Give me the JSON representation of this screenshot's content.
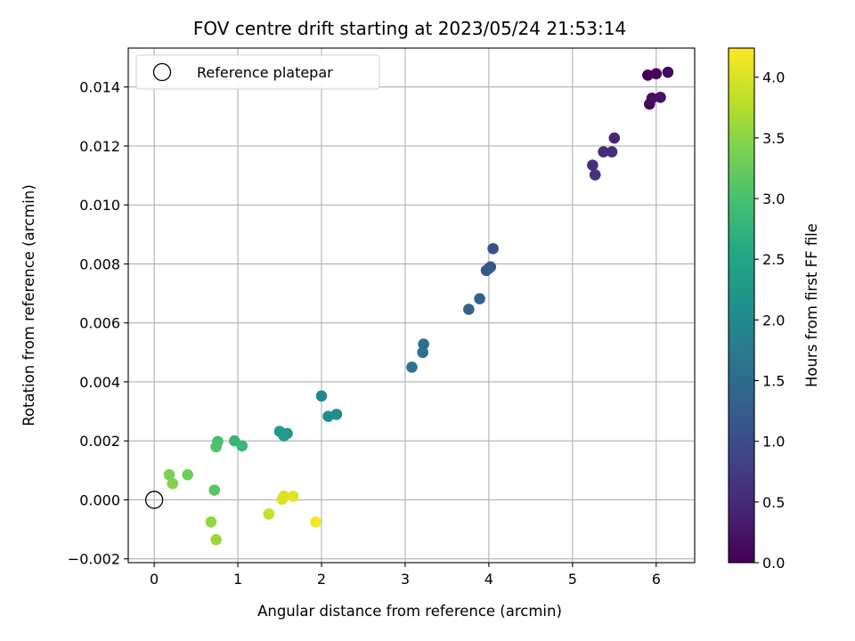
{
  "chart_data": {
    "type": "scatter",
    "title": "FOV centre drift starting at 2023/05/24 21:53:14",
    "xlabel": "Angular distance from reference (arcmin)",
    "ylabel": "Rotation from reference (arcmin)",
    "xlim": [
      -0.31,
      6.46
    ],
    "ylim": [
      -0.00213,
      0.01532
    ],
    "xticks": [
      0,
      1,
      2,
      3,
      4,
      5,
      6
    ],
    "xtick_labels": [
      "0",
      "1",
      "2",
      "3",
      "4",
      "5",
      "6"
    ],
    "yticks": [
      -0.002,
      0.0,
      0.002,
      0.004,
      0.006,
      0.008,
      0.01,
      0.012,
      0.014
    ],
    "ytick_labels": [
      "−0.002",
      "0.000",
      "0.002",
      "0.004",
      "0.006",
      "0.008",
      "0.010",
      "0.012",
      "0.014"
    ],
    "grid": true,
    "legend": {
      "position": "top-left",
      "entries": [
        {
          "label": "Reference platepar",
          "marker": "open-circle",
          "color": "#000000"
        }
      ]
    },
    "reference_point": {
      "x": 0.0,
      "y": 0.0
    },
    "colorbar": {
      "label": "Hours from first FF file",
      "colormap": "viridis",
      "range": [
        0.0,
        4.24
      ],
      "ticks": [
        0.0,
        0.5,
        1.0,
        1.5,
        2.0,
        2.5,
        3.0,
        3.5,
        4.0
      ],
      "tick_labels": [
        "0.0",
        "0.5",
        "1.0",
        "1.5",
        "2.0",
        "2.5",
        "3.0",
        "3.5",
        "4.0"
      ]
    },
    "points": [
      {
        "x": 5.9,
        "y": 0.0144,
        "hours": 0.0
      },
      {
        "x": 6.0,
        "y": 0.01445,
        "hours": 0.05
      },
      {
        "x": 6.14,
        "y": 0.0145,
        "hours": 0.09
      },
      {
        "x": 5.92,
        "y": 0.01342,
        "hours": 0.13
      },
      {
        "x": 5.95,
        "y": 0.01362,
        "hours": 0.16
      },
      {
        "x": 6.05,
        "y": 0.01365,
        "hours": 0.2
      },
      {
        "x": 5.5,
        "y": 0.01227,
        "hours": 0.45
      },
      {
        "x": 5.37,
        "y": 0.0118,
        "hours": 0.5
      },
      {
        "x": 5.47,
        "y": 0.0118,
        "hours": 0.54
      },
      {
        "x": 5.24,
        "y": 0.01135,
        "hours": 0.58
      },
      {
        "x": 5.27,
        "y": 0.01102,
        "hours": 0.63
      },
      {
        "x": 4.05,
        "y": 0.00852,
        "hours": 1.05
      },
      {
        "x": 4.02,
        "y": 0.0079,
        "hours": 1.1
      },
      {
        "x": 3.97,
        "y": 0.00778,
        "hours": 1.15
      },
      {
        "x": 4.0,
        "y": 0.00785,
        "hours": 1.2
      },
      {
        "x": 3.89,
        "y": 0.00682,
        "hours": 1.3
      },
      {
        "x": 3.76,
        "y": 0.00646,
        "hours": 1.37
      },
      {
        "x": 3.22,
        "y": 0.00528,
        "hours": 1.55
      },
      {
        "x": 3.21,
        "y": 0.005,
        "hours": 1.6
      },
      {
        "x": 3.08,
        "y": 0.0045,
        "hours": 1.66
      },
      {
        "x": 2.0,
        "y": 0.00352,
        "hours": 2.0
      },
      {
        "x": 2.18,
        "y": 0.0029,
        "hours": 2.05
      },
      {
        "x": 2.08,
        "y": 0.00283,
        "hours": 2.1
      },
      {
        "x": 1.59,
        "y": 0.00225,
        "hours": 2.25
      },
      {
        "x": 1.5,
        "y": 0.00232,
        "hours": 2.3
      },
      {
        "x": 1.55,
        "y": 0.00217,
        "hours": 2.35
      },
      {
        "x": 0.96,
        "y": 0.002,
        "hours": 2.8
      },
      {
        "x": 1.05,
        "y": 0.00183,
        "hours": 2.85
      },
      {
        "x": 0.76,
        "y": 0.00198,
        "hours": 3.0
      },
      {
        "x": 0.74,
        "y": 0.0018,
        "hours": 3.05
      },
      {
        "x": 0.72,
        "y": 0.00033,
        "hours": 3.15
      },
      {
        "x": 0.4,
        "y": 0.00085,
        "hours": 3.3
      },
      {
        "x": 0.18,
        "y": 0.00085,
        "hours": 3.4
      },
      {
        "x": 0.22,
        "y": 0.00055,
        "hours": 3.45
      },
      {
        "x": 0.68,
        "y": -0.00075,
        "hours": 3.55
      },
      {
        "x": 0.74,
        "y": -0.00135,
        "hours": 3.6
      },
      {
        "x": 1.37,
        "y": -0.00048,
        "hours": 3.9
      },
      {
        "x": 1.55,
        "y": 0.00012,
        "hours": 3.95
      },
      {
        "x": 1.53,
        "y": 2e-05,
        "hours": 4.0
      },
      {
        "x": 1.66,
        "y": 0.00012,
        "hours": 4.05
      },
      {
        "x": 1.93,
        "y": -0.00075,
        "hours": 4.2
      }
    ]
  }
}
